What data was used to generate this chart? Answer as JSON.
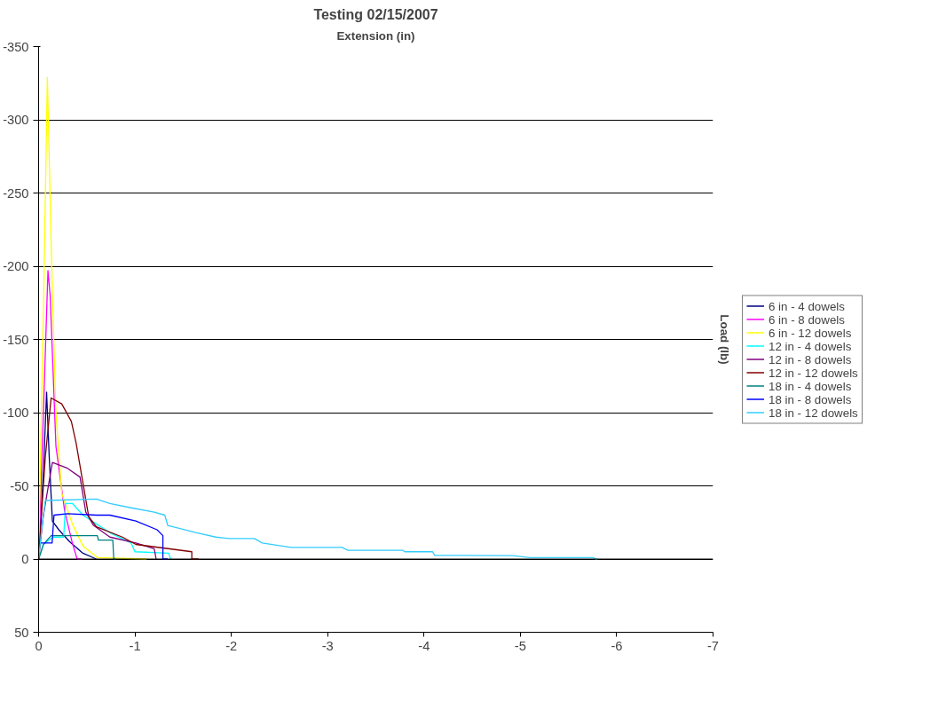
{
  "chart_data": {
    "type": "line",
    "title": "Testing 02/15/2007",
    "xlabel": "Extension (in)",
    "ylabel": "Load (lb)",
    "xlim": [
      0,
      -7
    ],
    "xticks": [
      0,
      -1,
      -2,
      -3,
      -4,
      -5,
      -6,
      -7
    ],
    "ylim": [
      50,
      -350
    ],
    "yticks": [
      -350,
      -300,
      -250,
      -200,
      -150,
      -100,
      -50,
      0,
      50
    ],
    "grid": "y",
    "legend": "right",
    "line_style": "solid",
    "series": [
      {
        "name": "6 in - 4 dowels",
        "color": "#000080",
        "x": [
          0,
          -0.05,
          -0.083,
          -0.11,
          -0.143,
          -0.21,
          -0.32,
          -0.46,
          -0.6
        ],
        "values": [
          0,
          -60,
          -114,
          -70,
          -26,
          -20,
          -12,
          -4,
          0
        ]
      },
      {
        "name": "6 in - 8 dowels",
        "color": "#ff00ff",
        "x": [
          0,
          -0.05,
          -0.097,
          -0.12,
          -0.18,
          -0.27,
          -0.35,
          -0.4,
          -0.45
        ],
        "values": [
          0,
          -100,
          -197,
          -180,
          -77,
          -33,
          -11,
          0,
          0
        ]
      },
      {
        "name": "6 in - 12 dowels",
        "color": "#ffff00",
        "x": [
          0,
          -0.05,
          -0.091,
          -0.143,
          -0.18,
          -0.24,
          -0.35,
          -0.46,
          -0.61,
          -1.12
        ],
        "values": [
          0,
          -170,
          -329,
          -181,
          -100,
          -45,
          -24,
          -9,
          -1,
          0
        ]
      },
      {
        "name": "12 in - 4 dowels",
        "color": "#00ffff",
        "x": [
          0,
          -0.05,
          -0.15,
          -0.26,
          -0.28,
          -0.35,
          -0.46,
          -0.6,
          -0.74,
          -0.96,
          -1.0,
          -1.35,
          -1.37
        ],
        "values": [
          0,
          -10,
          -15,
          -15,
          -38,
          -38,
          -30,
          -24,
          -18,
          -11,
          -5,
          -4,
          0
        ]
      },
      {
        "name": "12 in - 8 dowels",
        "color": "#800080",
        "x": [
          0,
          -0.05,
          -0.143,
          -0.3,
          -0.43,
          -0.49,
          -0.57,
          -0.74,
          -1.01,
          -1.2,
          -1.22
        ],
        "values": [
          0,
          -30,
          -66,
          -62,
          -56,
          -32,
          -23,
          -15,
          -11,
          -7,
          0
        ]
      },
      {
        "name": "12 in - 12 dowels",
        "color": "#800000",
        "x": [
          0,
          -0.07,
          -0.13,
          -0.24,
          -0.34,
          -0.39,
          -0.46,
          -0.52,
          -0.6,
          -0.87,
          -1.01,
          -1.59,
          -1.59,
          -1.66
        ],
        "values": [
          0,
          -70,
          -110,
          -106,
          -94,
          -79,
          -52,
          -29,
          -22,
          -15,
          -10,
          -5,
          0,
          0
        ]
      },
      {
        "name": "18 in - 4 dowels",
        "color": "#008080",
        "x": [
          0,
          -0.05,
          -0.13,
          -0.61,
          -0.62,
          -0.77,
          -0.78,
          -0.8
        ],
        "values": [
          0,
          -10,
          -16,
          -16,
          -13,
          -13,
          0,
          0
        ]
      },
      {
        "name": "18 in - 8 dowels",
        "color": "#0000ff",
        "x": [
          0,
          -0.01,
          -0.14,
          -0.16,
          -0.3,
          -0.6,
          -0.74,
          -1.01,
          -1.23,
          -1.29,
          -1.29,
          -1.34
        ],
        "values": [
          0,
          -11,
          -11,
          -30,
          -31,
          -30,
          -30,
          -26,
          -20,
          -16,
          0,
          0
        ]
      },
      {
        "name": "18 in - 12 dowels",
        "color": "#33ccff",
        "x": [
          0,
          -0.04,
          -0.07,
          -0.6,
          -0.74,
          -0.96,
          -1.2,
          -1.31,
          -1.34,
          -1.64,
          -1.84,
          -1.98,
          -2.24,
          -2.32,
          -2.62,
          -3.15,
          -3.21,
          -3.78,
          -3.8,
          -4.09,
          -4.11,
          -4.92,
          -5.1,
          -5.76,
          -5.78,
          -5.8
        ],
        "values": [
          0,
          -25,
          -40,
          -41,
          -38,
          -35,
          -32,
          -30,
          -23,
          -18,
          -15,
          -14,
          -14,
          -11,
          -8,
          -8,
          -6,
          -6,
          -5,
          -5,
          -2.5,
          -2.3,
          -1,
          -1,
          0,
          0
        ]
      }
    ]
  }
}
